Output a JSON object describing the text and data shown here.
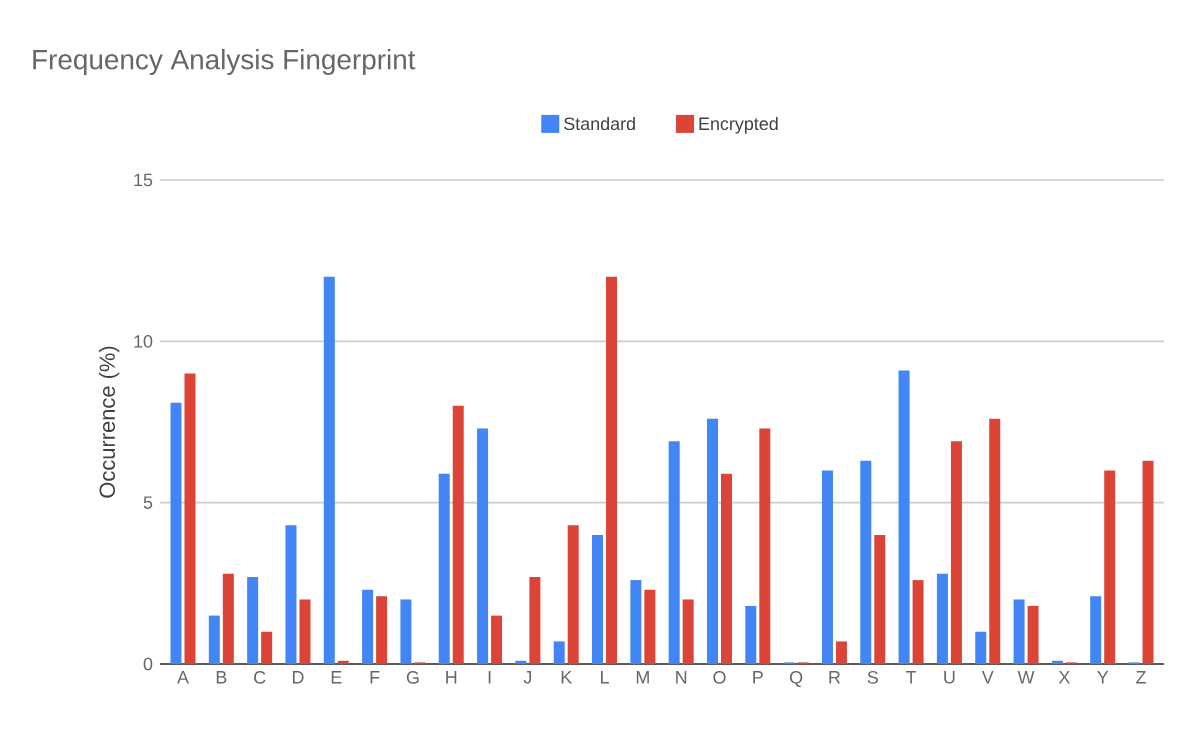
{
  "chart_data": {
    "type": "bar",
    "title": "Frequency Analysis Fingerprint",
    "ylabel": "Occurrence (%)",
    "categories": [
      "A",
      "B",
      "C",
      "D",
      "E",
      "F",
      "G",
      "H",
      "I",
      "J",
      "K",
      "L",
      "M",
      "N",
      "O",
      "P",
      "Q",
      "R",
      "S",
      "T",
      "U",
      "V",
      "W",
      "X",
      "Y",
      "Z"
    ],
    "series": [
      {
        "name": "Standard",
        "color": "#4285f4",
        "values": [
          8.1,
          1.5,
          2.7,
          4.3,
          12.0,
          2.3,
          2.0,
          5.9,
          7.3,
          0.1,
          0.7,
          4.0,
          2.6,
          6.9,
          7.6,
          1.8,
          0.05,
          6.0,
          6.3,
          9.1,
          2.8,
          1.0,
          2.0,
          0.1,
          2.1,
          0.05
        ]
      },
      {
        "name": "Encrypted",
        "color": "#db4437",
        "values": [
          9.0,
          2.8,
          1.0,
          2.0,
          0.1,
          2.1,
          0.05,
          8.0,
          1.5,
          2.7,
          4.3,
          12.0,
          2.3,
          2.0,
          5.9,
          7.3,
          0.05,
          0.7,
          4.0,
          2.6,
          6.9,
          7.6,
          1.8,
          0.05,
          6.0,
          6.3
        ]
      }
    ],
    "ylim": [
      0,
      15
    ],
    "yticks": [
      0,
      5,
      10,
      15
    ],
    "grid": "y",
    "legend": "top"
  }
}
